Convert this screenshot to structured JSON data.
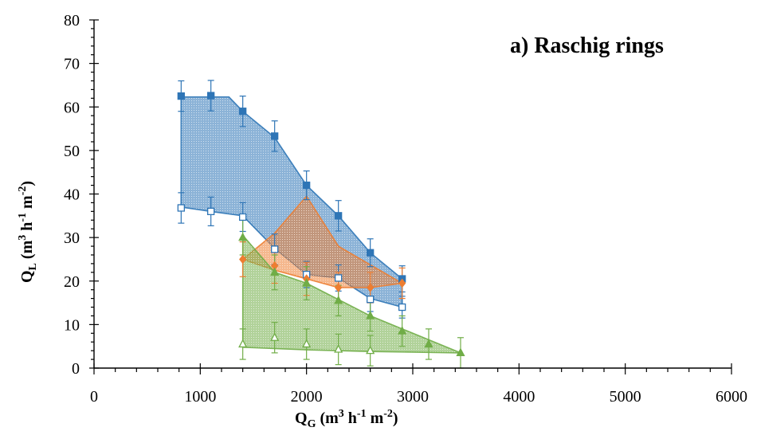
{
  "chart_data": {
    "type": "scatter",
    "title": "a) Raschig rings",
    "xlabel": {
      "main": "Q",
      "sub": "G",
      "rest": " (m",
      "s1": "3",
      "mid1": " h",
      "s2": "-1",
      "mid2": " m",
      "s3": "-2",
      "end": ")"
    },
    "ylabel": {
      "main": "Q",
      "sub": "L",
      "rest": " (m",
      "s1": "3",
      "mid1": " h",
      "s2": "-1",
      "mid2": " m",
      "s3": "-2",
      "end": ")"
    },
    "xlim": [
      0,
      6000
    ],
    "ylim": [
      0,
      80
    ],
    "xticks": [
      "0",
      "1000",
      "2000",
      "3000",
      "4000",
      "5000",
      "6000"
    ],
    "yticks": [
      "0",
      "10",
      "20",
      "30",
      "40",
      "50",
      "60",
      "70",
      "80"
    ],
    "grid": false,
    "regions": [
      {
        "color": "#2e75b6",
        "polygon": [
          [
            820,
            62.3
          ],
          [
            1270,
            62.3
          ],
          [
            1400,
            59
          ],
          [
            1700,
            53
          ],
          [
            2000,
            42
          ],
          [
            2300,
            35
          ],
          [
            2600,
            26.5
          ],
          [
            2900,
            20.5
          ],
          [
            2900,
            14
          ],
          [
            2600,
            16
          ],
          [
            2300,
            20.7
          ],
          [
            2000,
            21.5
          ],
          [
            1700,
            27.5
          ],
          [
            1400,
            35
          ],
          [
            1100,
            36
          ],
          [
            820,
            37
          ]
        ]
      },
      {
        "color": "#ed7d31",
        "polygon": [
          [
            1400,
            25
          ],
          [
            1700,
            31
          ],
          [
            2000,
            39.5
          ],
          [
            2300,
            28
          ],
          [
            2900,
            19.5
          ],
          [
            2600,
            18.5
          ],
          [
            2300,
            18.5
          ],
          [
            2000,
            20.5
          ],
          [
            1700,
            22.5
          ]
        ]
      },
      {
        "color": "#70ad47",
        "polygon": [
          [
            1400,
            30.5
          ],
          [
            1700,
            22
          ],
          [
            2000,
            19.5
          ],
          [
            2600,
            12
          ],
          [
            3450,
            3.5
          ],
          [
            2600,
            3.8
          ],
          [
            2000,
            4.2
          ],
          [
            1400,
            4.8
          ]
        ]
      }
    ],
    "series": [
      {
        "marker": "square-filled",
        "color": "#2e75b6",
        "x": [
          820,
          1100,
          1400,
          1700,
          2000,
          2300,
          2600,
          2900
        ],
        "y": [
          62.5,
          62.6,
          59,
          53.3,
          42,
          35,
          26.5,
          20.5
        ],
        "err": [
          3.5,
          3.5,
          3.5,
          3.5,
          3.3,
          3.5,
          3.2,
          3
        ]
      },
      {
        "marker": "square-open",
        "color": "#2e75b6",
        "x": [
          820,
          1100,
          1400,
          1700,
          2000,
          2300,
          2600,
          2900
        ],
        "y": [
          36.8,
          36,
          34.7,
          27.3,
          21.5,
          20.7,
          15.8,
          14
        ],
        "err": [
          3.5,
          3.3,
          3.3,
          3.5,
          3,
          3,
          2.8,
          2.5
        ]
      },
      {
        "marker": "diamond-filled",
        "color": "#ed7d31",
        "x": [
          1400,
          1700,
          2000,
          2300,
          2600,
          2900
        ],
        "y": [
          25,
          23.5,
          20.5,
          18.5,
          18.5,
          19.5
        ],
        "err": [
          4,
          4,
          3.8,
          3.5,
          3.5,
          3.5
        ]
      },
      {
        "marker": "triangle-filled",
        "color": "#70ad47",
        "x": [
          1400,
          1700,
          2000,
          2300,
          2600,
          2900,
          3150,
          3450
        ],
        "y": [
          30,
          22,
          19.5,
          15.5,
          12,
          8.5,
          5.5,
          3.5
        ],
        "err": [
          4,
          4,
          3.8,
          3.5,
          3.5,
          3.5,
          3.5,
          3.5
        ]
      },
      {
        "marker": "triangle-open",
        "color": "#70ad47",
        "x": [
          1400,
          1700,
          2000,
          2300,
          2600
        ],
        "y": [
          5.5,
          7,
          5.5,
          4.3,
          4
        ],
        "err": [
          3.5,
          3.5,
          3.5,
          3.5,
          3.5
        ]
      }
    ]
  }
}
